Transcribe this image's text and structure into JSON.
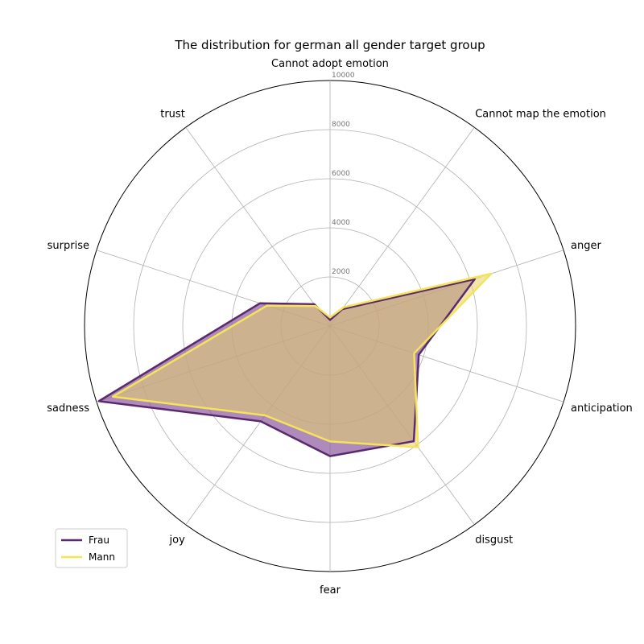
{
  "chart_data": {
    "type": "radar",
    "title": "The distribution for german all gender target group",
    "categories": [
      "Cannot adopt emotion",
      "Cannot map the emotion",
      "anger",
      "anticipation",
      "disgust",
      "fear",
      "joy",
      "sadness",
      "surprise",
      "trust"
    ],
    "rmax": 10000,
    "rticks": [
      2000,
      4000,
      6000,
      8000,
      10000
    ],
    "series": [
      {
        "name": "Frau",
        "values": [
          250,
          850,
          6200,
          3800,
          5800,
          5300,
          4800,
          9900,
          3000,
          1100
        ],
        "color": "#5b2a6e",
        "fill": "#8c5a9e",
        "fill_opacity": 0.7
      },
      {
        "name": "Mann",
        "values": [
          350,
          950,
          6900,
          3600,
          6100,
          4700,
          4500,
          9300,
          2700,
          1000
        ],
        "color": "#f5e35a",
        "fill": "#e6d36a",
        "fill_opacity": 0.55
      }
    ],
    "legend": {
      "placement": "lower-left",
      "entries": [
        "Frau",
        "Mann"
      ]
    },
    "grid": true
  }
}
